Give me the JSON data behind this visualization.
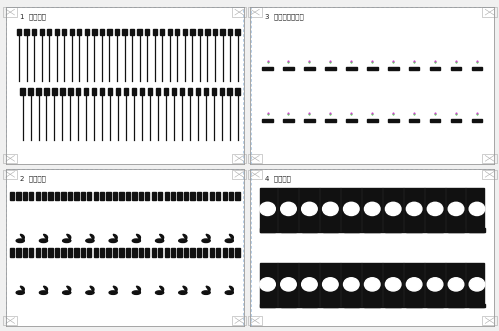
{
  "panel1_title": "1  銀导线层",
  "panel2_title": "3  銀掺杂氧化膜层",
  "panel3_title": "2  碳工作层",
  "panel4_title": "4  碳工作层",
  "bg_color": "#f0f0f0",
  "panel_bg": "#ffffff",
  "border_color": "#888888",
  "dashed_border_color": "#99bbdd",
  "title_color": "#222222",
  "title_fontsize": 5.0,
  "dark": "#111111",
  "white": "#ffffff",
  "p1_n_row1": 30,
  "p1_n_row2": 28,
  "p2_n_dots": 11,
  "p3_n_rects": 36,
  "p3_n_flames": 10,
  "p4_n_circles": 11
}
